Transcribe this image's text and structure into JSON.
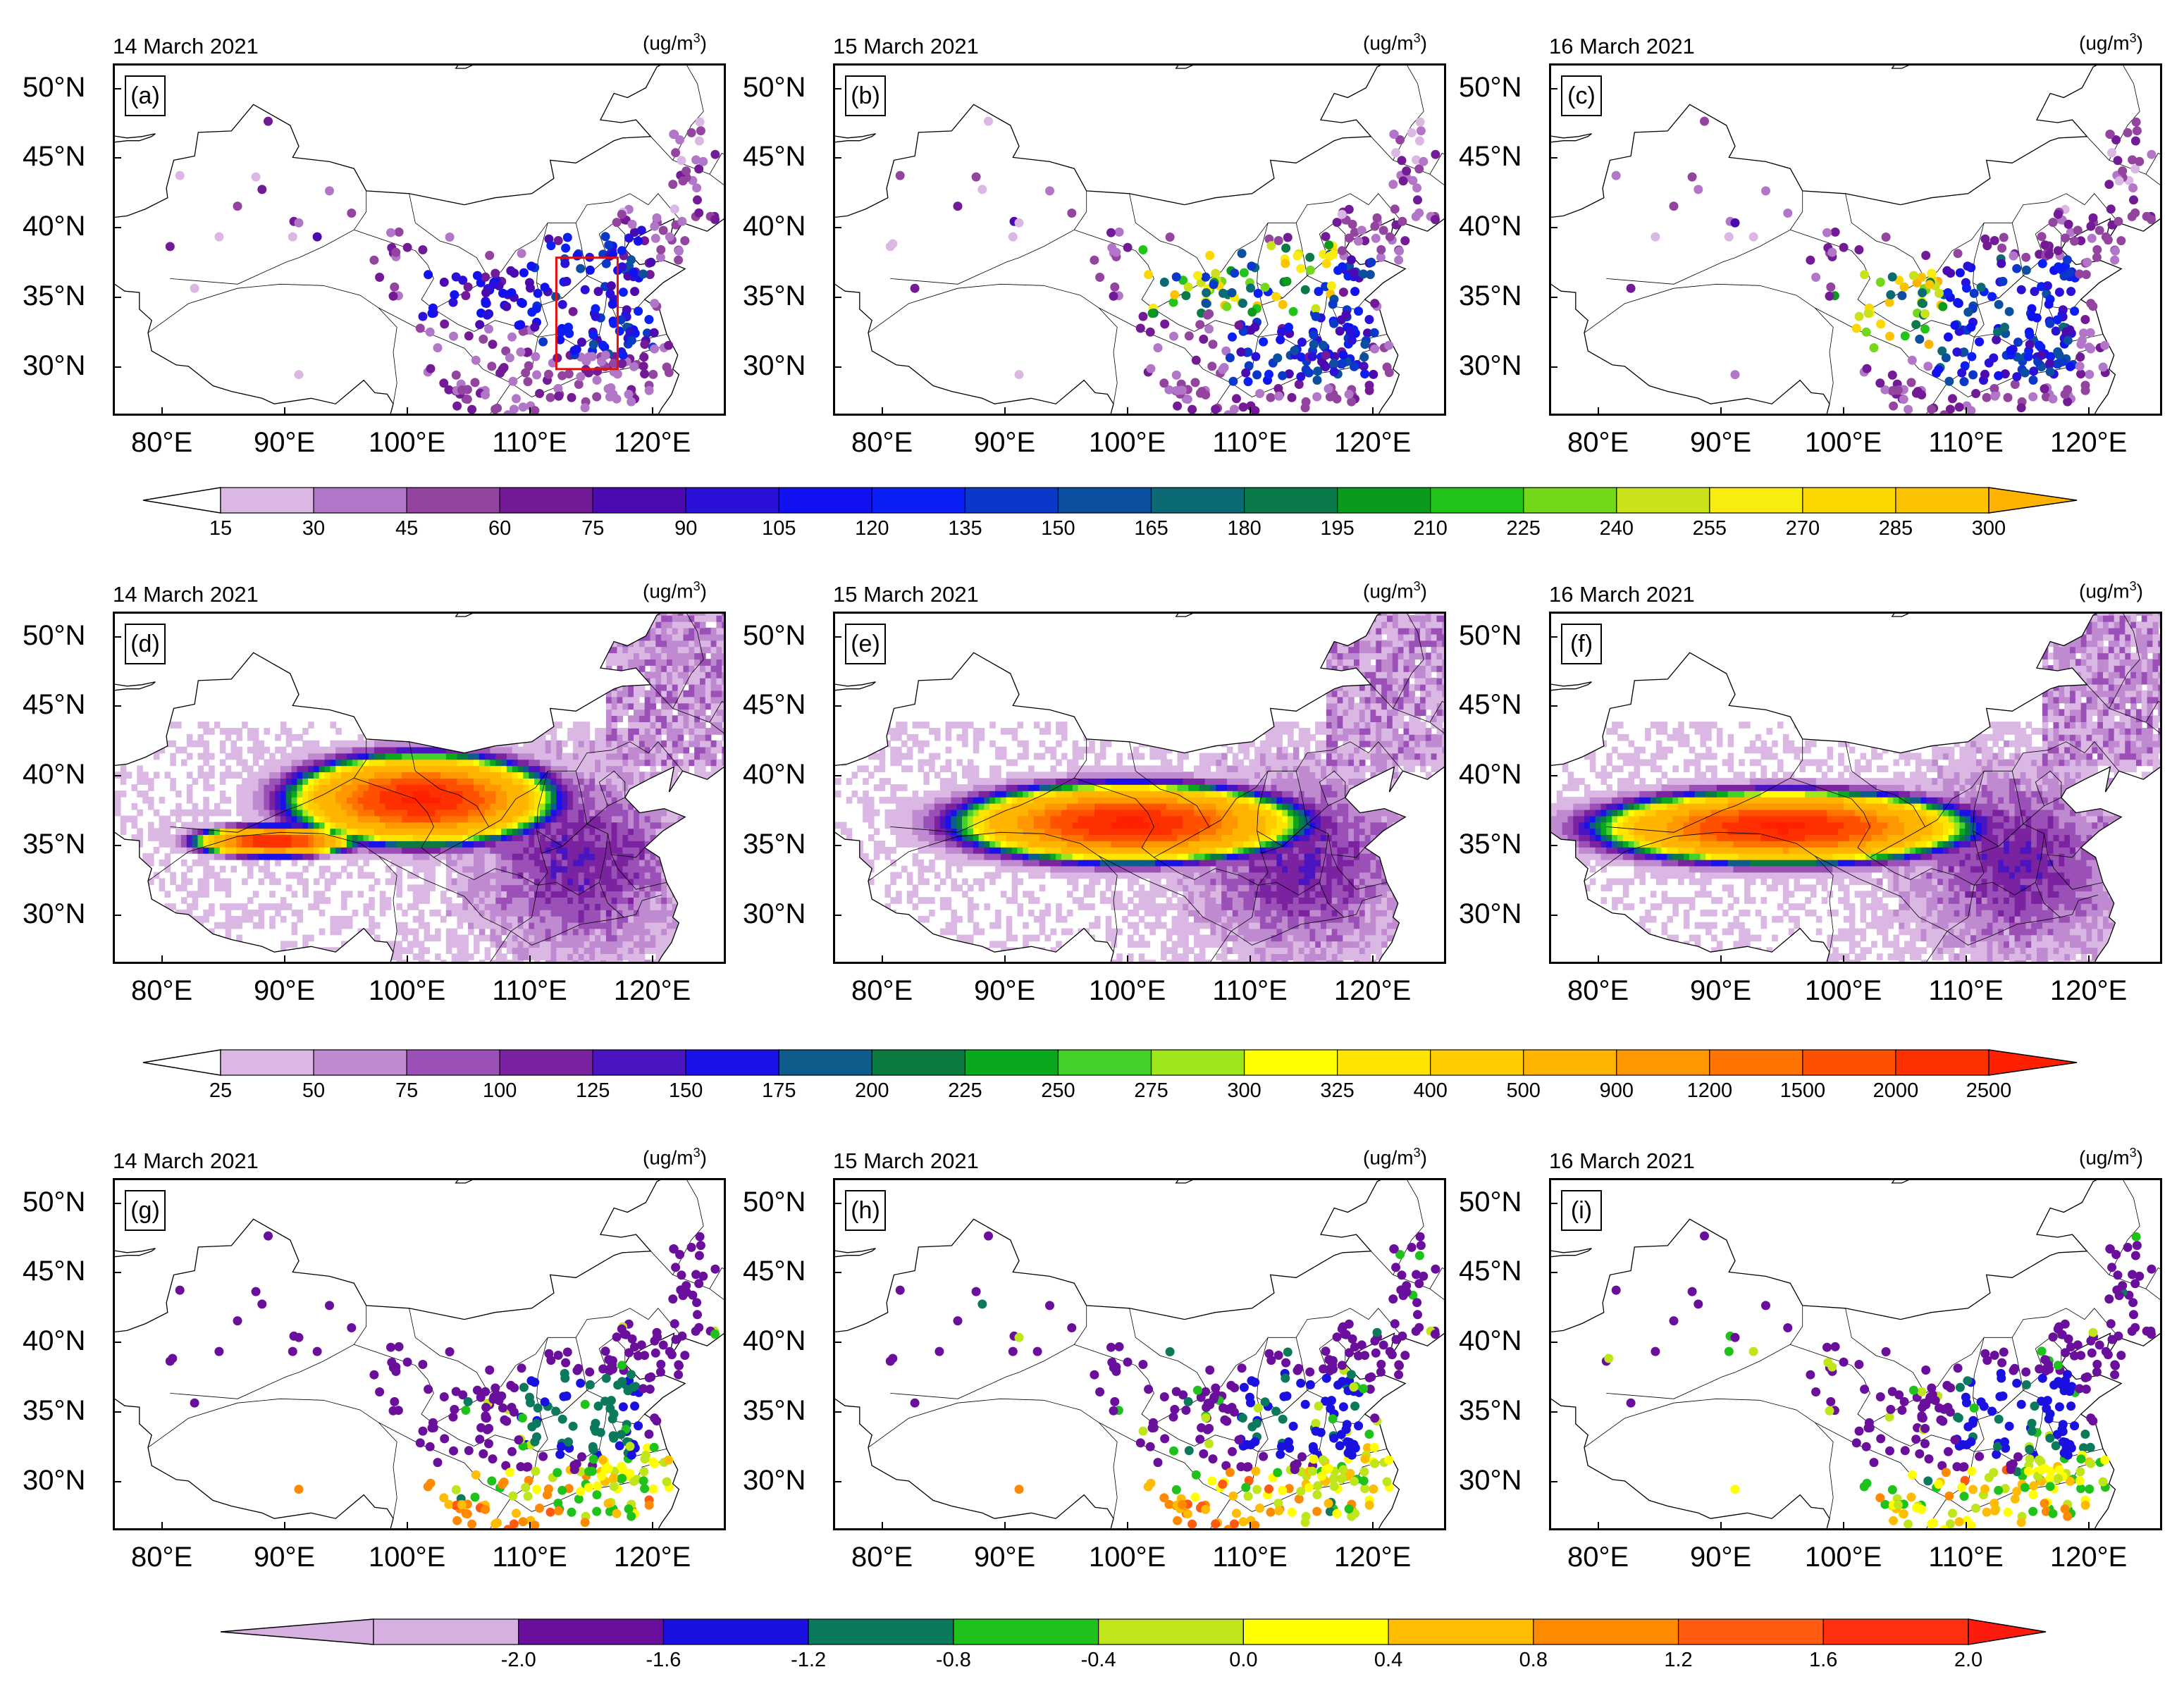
{
  "units": "(ug/m",
  "units_sup": "3",
  "units_close": ")",
  "lat_ticks": [
    "50°N",
    "45°N",
    "40°N",
    "35°N",
    "30°N"
  ],
  "lon_ticks": [
    "80°E",
    "90°E",
    "100°E",
    "110°E",
    "120°E"
  ],
  "rows": [
    {
      "kind": "stations",
      "colormap": "obs",
      "panels": [
        {
          "label": "(a)",
          "date": "14 March 2021",
          "scenario": 1,
          "highlight_box": true
        },
        {
          "label": "(b)",
          "date": "15 March 2021",
          "scenario": 2,
          "highlight_box": false
        },
        {
          "label": "(c)",
          "date": "16 March 2021",
          "scenario": 3,
          "highlight_box": false
        }
      ]
    },
    {
      "kind": "field",
      "colormap": "model",
      "panels": [
        {
          "label": "(d)",
          "date": "14 March 2021",
          "scenario": 1
        },
        {
          "label": "(e)",
          "date": "15 March 2021",
          "scenario": 2
        },
        {
          "label": "(f)",
          "date": "16 March 2021",
          "scenario": 3
        }
      ]
    },
    {
      "kind": "stations",
      "colormap": "bias",
      "panels": [
        {
          "label": "(g)",
          "date": "14 March 2021",
          "scenario": 1
        },
        {
          "label": "(h)",
          "date": "15 March 2021",
          "scenario": 2
        },
        {
          "label": "(i)",
          "date": "16 March 2021",
          "scenario": 3
        }
      ]
    }
  ],
  "colorbars": {
    "obs": {
      "ticks": [
        "15",
        "30",
        "45",
        "60",
        "75",
        "90",
        "105",
        "120",
        "135",
        "150",
        "165",
        "180",
        "195",
        "210",
        "225",
        "240",
        "255",
        "270",
        "285",
        "300"
      ],
      "below": "#ffffff",
      "above": "#ffb300",
      "colors": [
        "#dbb8e4",
        "#b276c8",
        "#93449f",
        "#731b96",
        "#4a0ab0",
        "#2b10d8",
        "#1010f0",
        "#0a1ef5",
        "#0b38c8",
        "#0c4fa0",
        "#0b6a74",
        "#0b7a4a",
        "#0a9a1c",
        "#22c41a",
        "#72d81a",
        "#cae21a",
        "#f8ec10",
        "#fcd800",
        "#fcc400"
      ]
    },
    "model": {
      "ticks": [
        "25",
        "50",
        "75",
        "100",
        "125",
        "150",
        "175",
        "200",
        "225",
        "250",
        "275",
        "300",
        "325",
        "400",
        "500",
        "900",
        "1200",
        "1500",
        "2000",
        "2500"
      ],
      "below": "#ffffff",
      "above": "#ff2000",
      "colors": [
        "#dbb8e4",
        "#bf8ad0",
        "#9a50b6",
        "#7b22a0",
        "#4a14c0",
        "#1a10e8",
        "#0e5c8c",
        "#0a7a40",
        "#0aa81c",
        "#44d22a",
        "#a0e61c",
        "#ffff00",
        "#ffe400",
        "#ffcc00",
        "#ffb400",
        "#ff9800",
        "#ff7400",
        "#ff5000",
        "#ff3000"
      ]
    },
    "bias": {
      "ticks": [
        "-2.0",
        "-1.6",
        "-1.2",
        "-0.8",
        "-0.4",
        "0.0",
        "0.4",
        "0.8",
        "1.2",
        "1.6",
        "2.0"
      ],
      "below": "#d6b0e0",
      "above": "#ff1a10",
      "colors": [
        "#6a0f9c",
        "#1a10e0",
        "#0b7a5c",
        "#1fc21a",
        "#bfe61a",
        "#ffff00",
        "#ffbc00",
        "#ff8a00",
        "#ff5a10",
        "#ff3010"
      ]
    }
  }
}
